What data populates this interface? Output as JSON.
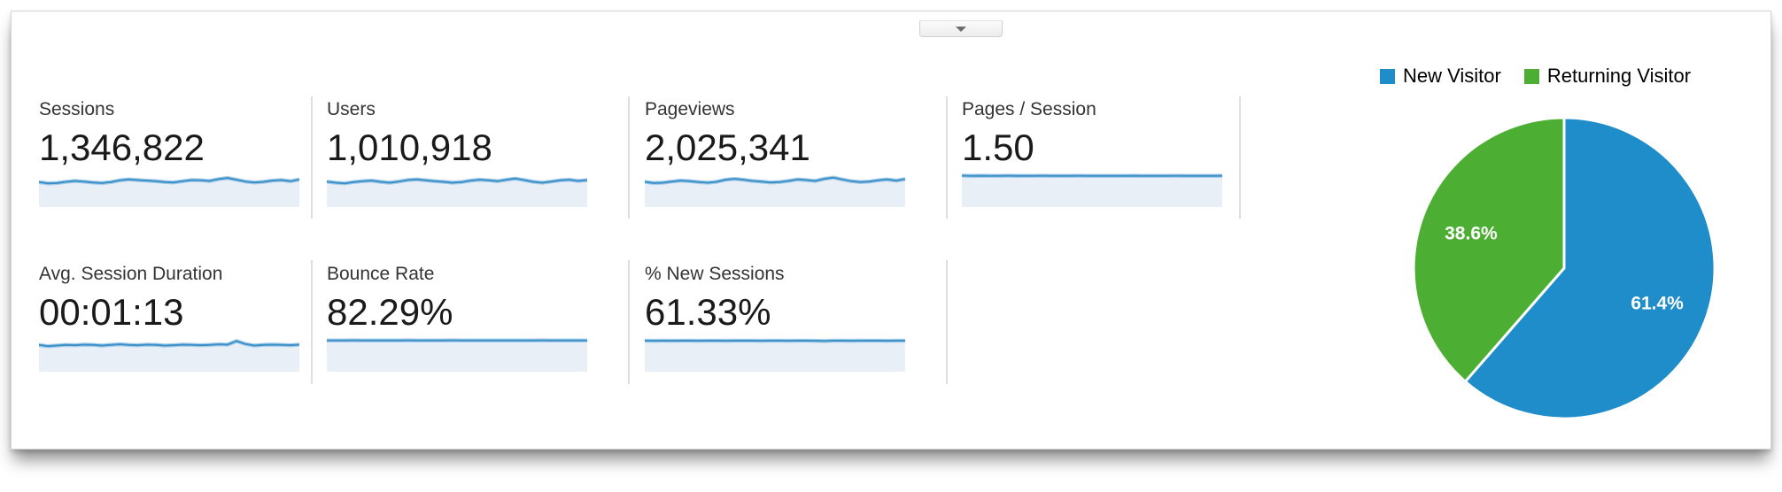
{
  "panel": {
    "collapse_button": {
      "icon": "chevron-down"
    }
  },
  "metrics": {
    "items": [
      {
        "label": "Sessions",
        "value": "1,346,822"
      },
      {
        "label": "Users",
        "value": "1,010,918"
      },
      {
        "label": "Pageviews",
        "value": "2,025,341"
      },
      {
        "label": "Pages / Session",
        "value": "1.50"
      },
      {
        "label": "Avg. Session Duration",
        "value": "00:01:13"
      },
      {
        "label": "Bounce Rate",
        "value": "82.29%"
      },
      {
        "label": "% New Sessions",
        "value": "61.33%"
      }
    ]
  },
  "colors": {
    "sparkline_line": "#3a8fc8",
    "sparkline_halo": "#a5cce8",
    "sparkline_fill": "#e8eff7",
    "separator": "#dedede",
    "pie_blue": "#1f8dc9",
    "pie_green": "#4cae32"
  },
  "chart_data": [
    {
      "type": "area",
      "metric": "Sessions",
      "values_normalized": true,
      "ylim": [
        0,
        1
      ],
      "values": [
        0.74,
        0.7,
        0.71,
        0.75,
        0.78,
        0.76,
        0.73,
        0.71,
        0.74,
        0.8,
        0.83,
        0.81,
        0.79,
        0.77,
        0.74,
        0.73,
        0.77,
        0.81,
        0.8,
        0.78,
        0.84,
        0.88,
        0.82,
        0.76,
        0.73,
        0.75,
        0.79,
        0.81,
        0.77,
        0.83
      ]
    },
    {
      "type": "area",
      "metric": "Users",
      "values_normalized": true,
      "ylim": [
        0,
        1
      ],
      "values": [
        0.76,
        0.72,
        0.7,
        0.74,
        0.77,
        0.79,
        0.75,
        0.72,
        0.76,
        0.81,
        0.83,
        0.8,
        0.77,
        0.75,
        0.72,
        0.74,
        0.79,
        0.82,
        0.8,
        0.77,
        0.82,
        0.86,
        0.81,
        0.75,
        0.72,
        0.76,
        0.8,
        0.82,
        0.78,
        0.81
      ]
    },
    {
      "type": "area",
      "metric": "Pageviews",
      "values_normalized": true,
      "ylim": [
        0,
        1
      ],
      "values": [
        0.75,
        0.71,
        0.72,
        0.76,
        0.79,
        0.77,
        0.74,
        0.72,
        0.75,
        0.82,
        0.85,
        0.82,
        0.78,
        0.76,
        0.73,
        0.74,
        0.78,
        0.83,
        0.81,
        0.78,
        0.85,
        0.89,
        0.83,
        0.77,
        0.74,
        0.76,
        0.8,
        0.83,
        0.79,
        0.84
      ]
    },
    {
      "type": "area",
      "metric": "Pages / Session",
      "values_normalized": true,
      "ylim": [
        0,
        1
      ],
      "values": [
        0.955,
        0.95,
        0.952,
        0.948,
        0.95,
        0.953,
        0.95,
        0.949,
        0.951,
        0.952,
        0.95,
        0.948,
        0.95,
        0.952,
        0.95,
        0.949,
        0.951,
        0.95,
        0.948,
        0.952,
        0.95,
        0.951,
        0.949,
        0.95,
        0.952,
        0.95,
        0.948,
        0.951,
        0.95,
        0.952
      ]
    },
    {
      "type": "area",
      "metric": "Avg. Session Duration",
      "values_normalized": true,
      "ylim": [
        0,
        1
      ],
      "values": [
        0.8,
        0.76,
        0.78,
        0.8,
        0.79,
        0.81,
        0.8,
        0.78,
        0.8,
        0.82,
        0.8,
        0.79,
        0.81,
        0.8,
        0.78,
        0.79,
        0.81,
        0.8,
        0.79,
        0.8,
        0.82,
        0.81,
        0.93,
        0.83,
        0.78,
        0.8,
        0.81,
        0.8,
        0.79,
        0.81
      ]
    },
    {
      "type": "area",
      "metric": "Bounce Rate",
      "values_normalized": true,
      "ylim": [
        0,
        1
      ],
      "values": [
        0.95,
        0.951,
        0.949,
        0.952,
        0.95,
        0.948,
        0.951,
        0.95,
        0.949,
        0.952,
        0.95,
        0.951,
        0.948,
        0.95,
        0.952,
        0.949,
        0.95,
        0.951,
        0.95,
        0.948,
        0.951,
        0.95,
        0.949,
        0.95,
        0.952,
        0.95,
        0.949,
        0.951,
        0.95,
        0.95
      ]
    },
    {
      "type": "area",
      "metric": "% New Sessions",
      "values_normalized": true,
      "ylim": [
        0,
        1
      ],
      "values": [
        0.94,
        0.938,
        0.941,
        0.939,
        0.94,
        0.942,
        0.939,
        0.94,
        0.941,
        0.938,
        0.94,
        0.942,
        0.94,
        0.939,
        0.941,
        0.94,
        0.938,
        0.94,
        0.942,
        0.939,
        0.93,
        0.94,
        0.941,
        0.939,
        0.94,
        0.942,
        0.94,
        0.938,
        0.941,
        0.94
      ]
    },
    {
      "type": "pie",
      "legend_position": "top-right",
      "start_angle": "top",
      "direction": "clockwise",
      "slices": [
        {
          "label": "New Visitor",
          "value": 61.4,
          "display": "61.4%",
          "color": "#1f8dc9"
        },
        {
          "label": "Returning Visitor",
          "value": 38.6,
          "display": "38.6%",
          "color": "#4cae32"
        }
      ]
    }
  ]
}
